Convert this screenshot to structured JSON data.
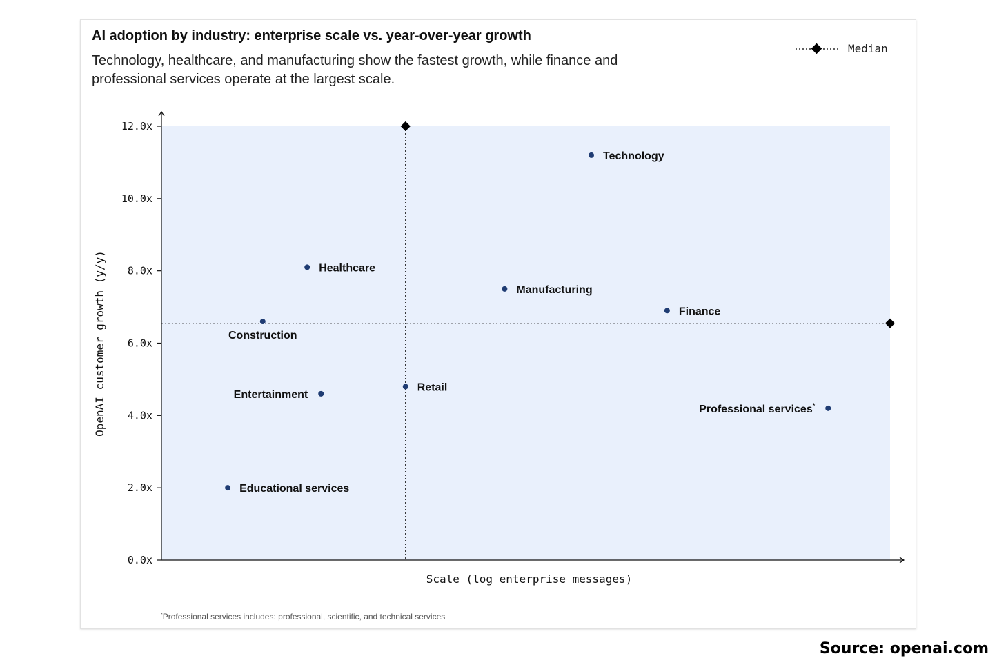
{
  "header": {
    "title": "AI adoption by industry: enterprise scale vs. year-over-year growth",
    "subtitle": "Technology, healthcare, and manufacturing show the fastest growth, while finance and professional services operate at the largest scale."
  },
  "legend": {
    "median_label": "Median"
  },
  "footnote": {
    "marker": "*",
    "text": "Professional services includes: professional, scientific, and technical services"
  },
  "source": "Source: openai.com",
  "colors": {
    "plot_background": "#e9f0fc",
    "point": "#1f3c73",
    "median_marker": "#000000"
  },
  "chart_data": {
    "type": "scatter",
    "title": "AI adoption by industry: enterprise scale vs. year-over-year growth",
    "xlabel": "Scale (log enterprise messages)",
    "ylabel": "OpenAI customer growth (y/y)",
    "x_scale_note": "relative position on log scale, 0 = left axis, 1 = right edge; no x tick labels shown",
    "xlim": [
      0,
      1
    ],
    "ylim": [
      0,
      12
    ],
    "yticks": [
      {
        "value": 0,
        "label": "0.0x"
      },
      {
        "value": 2,
        "label": "2.0x"
      },
      {
        "value": 4,
        "label": "4.0x"
      },
      {
        "value": 6,
        "label": "6.0x"
      },
      {
        "value": 8,
        "label": "8.0x"
      },
      {
        "value": 10,
        "label": "10.0x"
      },
      {
        "value": 12,
        "label": "12.0x"
      }
    ],
    "median": {
      "x": 0.335,
      "y": 6.55
    },
    "points": [
      {
        "name": "Technology",
        "x": 0.59,
        "y": 11.2,
        "label_side": "right"
      },
      {
        "name": "Healthcare",
        "x": 0.2,
        "y": 8.1,
        "label_side": "right"
      },
      {
        "name": "Manufacturing",
        "x": 0.471,
        "y": 7.5,
        "label_side": "right"
      },
      {
        "name": "Finance",
        "x": 0.694,
        "y": 6.9,
        "label_side": "right"
      },
      {
        "name": "Construction",
        "x": 0.139,
        "y": 6.6,
        "label_side": "below"
      },
      {
        "name": "Retail",
        "x": 0.335,
        "y": 4.8,
        "label_side": "right"
      },
      {
        "name": "Entertainment",
        "x": 0.219,
        "y": 4.6,
        "label_side": "left"
      },
      {
        "name": "Professional services",
        "x": 0.915,
        "y": 4.2,
        "label_side": "left",
        "footnote": "*"
      },
      {
        "name": "Educational services",
        "x": 0.091,
        "y": 2.0,
        "label_side": "right"
      }
    ]
  }
}
